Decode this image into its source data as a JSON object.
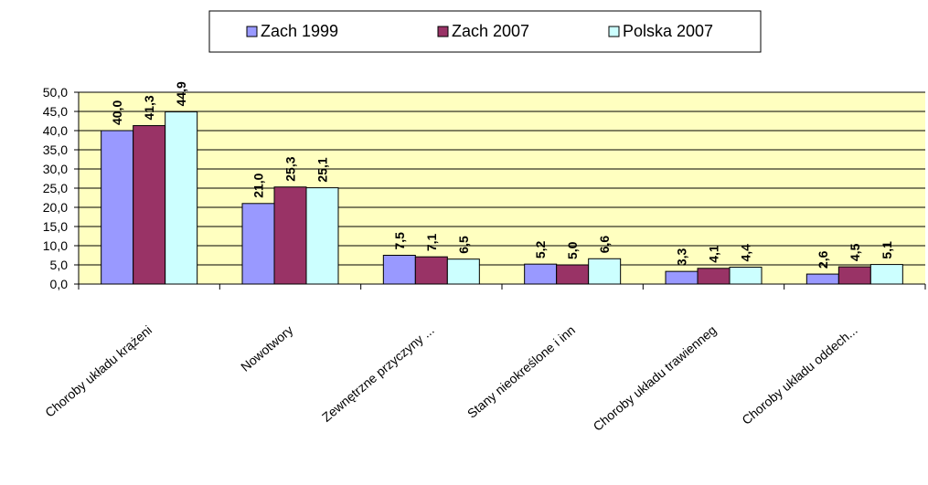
{
  "chart_data": {
    "type": "bar",
    "categories": [
      "Choroby układu krążeni",
      "Nowotwory",
      "Zewnętrzne przyczyny ...",
      "Stany nieokreślone i inn",
      "Choroby układu trawienneg",
      "Choroby układu oddech..."
    ],
    "series": [
      {
        "name": "Zach 1999",
        "color": "#9999ff",
        "values": [
          40.0,
          21.0,
          7.5,
          5.2,
          3.3,
          2.6
        ],
        "value_labels": [
          "40,0",
          "21,0",
          "7,5",
          "5,2",
          "3,3",
          "2,6"
        ]
      },
      {
        "name": "Zach 2007",
        "color": "#993366",
        "values": [
          41.3,
          25.3,
          7.1,
          5.0,
          4.1,
          4.5
        ],
        "value_labels": [
          "41,3",
          "25,3",
          "7,1",
          "5,0",
          "4,1",
          "4,5"
        ]
      },
      {
        "name": "Polska 2007",
        "color": "#ccffff",
        "values": [
          44.9,
          25.1,
          6.5,
          6.6,
          4.4,
          5.1
        ],
        "value_labels": [
          "44,9",
          "25,1",
          "6,5",
          "6,6",
          "4,4",
          "5,1"
        ]
      }
    ],
    "ylim": [
      0,
      50
    ],
    "yticks": [
      {
        "value": 0,
        "label": "0,0"
      },
      {
        "value": 5,
        "label": "5,0"
      },
      {
        "value": 10,
        "label": "10,0"
      },
      {
        "value": 15,
        "label": "15,0"
      },
      {
        "value": 20,
        "label": "20,0"
      },
      {
        "value": 25,
        "label": "25,0"
      },
      {
        "value": 30,
        "label": "30,0"
      },
      {
        "value": 35,
        "label": "35,0"
      },
      {
        "value": 40,
        "label": "40,0"
      },
      {
        "value": 45,
        "label": "45,0"
      },
      {
        "value": 50,
        "label": "50,0"
      }
    ],
    "grid": true,
    "legend": "top"
  }
}
